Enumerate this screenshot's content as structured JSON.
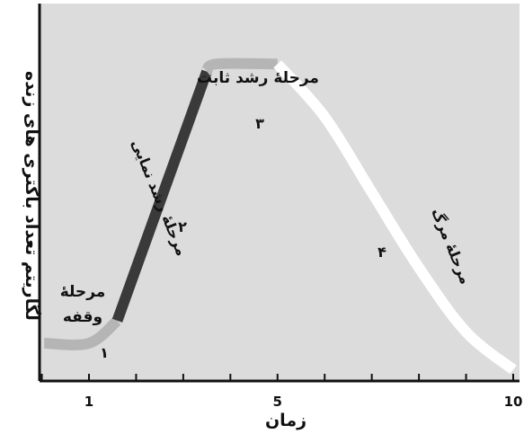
{
  "chart_data": {
    "type": "line",
    "title": "",
    "xlabel": "زمان",
    "ylabel": "لگاریتم تعداد باکتری های زنده",
    "xlim": [
      0,
      10
    ],
    "ylim": [
      0,
      10
    ],
    "x_ticks": [
      0,
      1,
      2,
      3,
      4,
      5,
      6,
      7,
      8,
      9,
      10
    ],
    "x_tick_labels": [
      {
        "x": 1,
        "label": "1"
      },
      {
        "x": 5,
        "label": "5"
      },
      {
        "x": 10,
        "label": "10"
      }
    ],
    "grid": false,
    "legend": "none",
    "phases": [
      {
        "number": "۱",
        "name": "مرحلهٔ وقفه",
        "name_lines": [
          "مرحلهٔ",
          "وقفه"
        ],
        "color": "#b5b5b5",
        "points": [
          [
            0.05,
            1.0
          ],
          [
            1.0,
            1.0
          ],
          [
            1.6,
            1.6
          ]
        ]
      },
      {
        "number": "۲",
        "name": "مرحلهٔ رشد نمایی",
        "color": "#3a3a3a",
        "points": [
          [
            1.6,
            1.6
          ],
          [
            3.5,
            8.2
          ]
        ]
      },
      {
        "number": "۳",
        "name": "مرحلهٔ رشد ثابت",
        "color": "#b5b5b5",
        "points": [
          [
            3.5,
            8.2
          ],
          [
            3.7,
            8.4
          ],
          [
            5.0,
            8.4
          ]
        ]
      },
      {
        "number": "۴",
        "name": "مرحلهٔ مرگ",
        "color": "#ffffff",
        "points": [
          [
            5.0,
            8.4
          ],
          [
            6.0,
            7.0
          ],
          [
            7.0,
            5.0
          ],
          [
            8.0,
            3.0
          ],
          [
            9.0,
            1.3
          ],
          [
            10.0,
            0.3
          ]
        ]
      }
    ],
    "colors": {
      "background": "#dcdcdc",
      "axis": "#111111",
      "text": "#111111"
    }
  }
}
